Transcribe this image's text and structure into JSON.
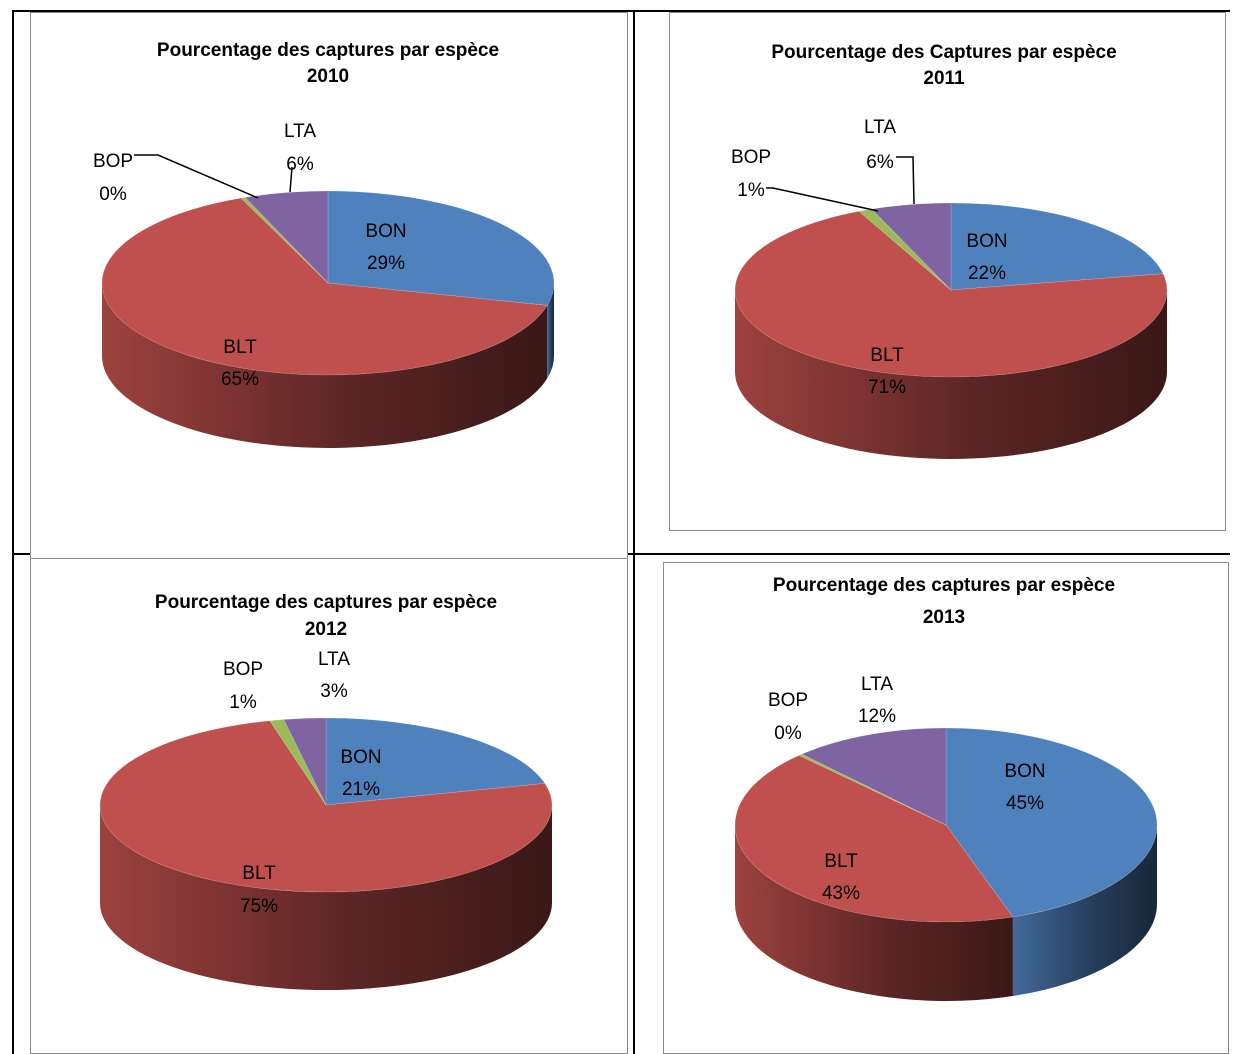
{
  "colors": {
    "BON": "#4f81bd",
    "BLT": "#c0504d",
    "BOP": "#9bbb59",
    "LTA": "#8064a2"
  },
  "chart_data": [
    {
      "type": "pie",
      "title": "Pourcentage des captures par espèce",
      "subtitle": "2010",
      "slices": [
        {
          "label": "BON",
          "value": 29,
          "display": "29%"
        },
        {
          "label": "BLT",
          "value": 65,
          "display": "65%"
        },
        {
          "label": "BOP",
          "value": 0.3,
          "display": "0%"
        },
        {
          "label": "LTA",
          "value": 6,
          "display": "6%"
        }
      ]
    },
    {
      "type": "pie",
      "title": "Pourcentage des Captures par espèce",
      "subtitle": "2011",
      "slices": [
        {
          "label": "BON",
          "value": 22,
          "display": "22%"
        },
        {
          "label": "BLT",
          "value": 71,
          "display": "71%"
        },
        {
          "label": "BOP",
          "value": 1,
          "display": "1%"
        },
        {
          "label": "LTA",
          "value": 6,
          "display": "6%"
        }
      ]
    },
    {
      "type": "pie",
      "title": "Pourcentage des captures par espèce",
      "subtitle": "2012",
      "slices": [
        {
          "label": "BON",
          "value": 21,
          "display": "21%"
        },
        {
          "label": "BLT",
          "value": 75,
          "display": "75%"
        },
        {
          "label": "BOP",
          "value": 1,
          "display": "1%"
        },
        {
          "label": "LTA",
          "value": 3,
          "display": "3%"
        }
      ]
    },
    {
      "type": "pie",
      "title": "Pourcentage des captures par espèce",
      "subtitle": "2013",
      "slices": [
        {
          "label": "BON",
          "value": 45,
          "display": "45%"
        },
        {
          "label": "BLT",
          "value": 43,
          "display": "43%"
        },
        {
          "label": "BOP",
          "value": 0.3,
          "display": "0%"
        },
        {
          "label": "LTA",
          "value": 12,
          "display": "12%"
        }
      ]
    }
  ]
}
